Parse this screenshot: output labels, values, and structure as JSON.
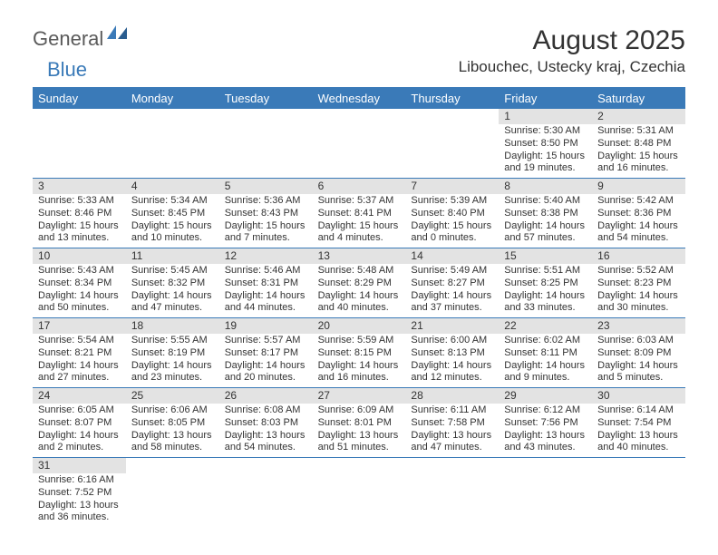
{
  "branding": {
    "logo_part1": "General",
    "logo_part2": "Blue",
    "logo_color1": "#5a5a5a",
    "logo_color2": "#3a7ab8"
  },
  "header": {
    "month_title": "August 2025",
    "location": "Libouchec, Ustecky kraj, Czechia"
  },
  "colors": {
    "header_bg": "#3a7ab8",
    "daynum_bg": "#e3e3e3",
    "text": "#333333",
    "border": "#3a7ab8"
  },
  "weekdays": [
    "Sunday",
    "Monday",
    "Tuesday",
    "Wednesday",
    "Thursday",
    "Friday",
    "Saturday"
  ],
  "weeks": [
    [
      {
        "empty": true
      },
      {
        "empty": true
      },
      {
        "empty": true
      },
      {
        "empty": true
      },
      {
        "empty": true
      },
      {
        "day": "1",
        "sunrise": "Sunrise: 5:30 AM",
        "sunset": "Sunset: 8:50 PM",
        "daylight1": "Daylight: 15 hours",
        "daylight2": "and 19 minutes."
      },
      {
        "day": "2",
        "sunrise": "Sunrise: 5:31 AM",
        "sunset": "Sunset: 8:48 PM",
        "daylight1": "Daylight: 15 hours",
        "daylight2": "and 16 minutes."
      }
    ],
    [
      {
        "day": "3",
        "sunrise": "Sunrise: 5:33 AM",
        "sunset": "Sunset: 8:46 PM",
        "daylight1": "Daylight: 15 hours",
        "daylight2": "and 13 minutes."
      },
      {
        "day": "4",
        "sunrise": "Sunrise: 5:34 AM",
        "sunset": "Sunset: 8:45 PM",
        "daylight1": "Daylight: 15 hours",
        "daylight2": "and 10 minutes."
      },
      {
        "day": "5",
        "sunrise": "Sunrise: 5:36 AM",
        "sunset": "Sunset: 8:43 PM",
        "daylight1": "Daylight: 15 hours",
        "daylight2": "and 7 minutes."
      },
      {
        "day": "6",
        "sunrise": "Sunrise: 5:37 AM",
        "sunset": "Sunset: 8:41 PM",
        "daylight1": "Daylight: 15 hours",
        "daylight2": "and 4 minutes."
      },
      {
        "day": "7",
        "sunrise": "Sunrise: 5:39 AM",
        "sunset": "Sunset: 8:40 PM",
        "daylight1": "Daylight: 15 hours",
        "daylight2": "and 0 minutes."
      },
      {
        "day": "8",
        "sunrise": "Sunrise: 5:40 AM",
        "sunset": "Sunset: 8:38 PM",
        "daylight1": "Daylight: 14 hours",
        "daylight2": "and 57 minutes."
      },
      {
        "day": "9",
        "sunrise": "Sunrise: 5:42 AM",
        "sunset": "Sunset: 8:36 PM",
        "daylight1": "Daylight: 14 hours",
        "daylight2": "and 54 minutes."
      }
    ],
    [
      {
        "day": "10",
        "sunrise": "Sunrise: 5:43 AM",
        "sunset": "Sunset: 8:34 PM",
        "daylight1": "Daylight: 14 hours",
        "daylight2": "and 50 minutes."
      },
      {
        "day": "11",
        "sunrise": "Sunrise: 5:45 AM",
        "sunset": "Sunset: 8:32 PM",
        "daylight1": "Daylight: 14 hours",
        "daylight2": "and 47 minutes."
      },
      {
        "day": "12",
        "sunrise": "Sunrise: 5:46 AM",
        "sunset": "Sunset: 8:31 PM",
        "daylight1": "Daylight: 14 hours",
        "daylight2": "and 44 minutes."
      },
      {
        "day": "13",
        "sunrise": "Sunrise: 5:48 AM",
        "sunset": "Sunset: 8:29 PM",
        "daylight1": "Daylight: 14 hours",
        "daylight2": "and 40 minutes."
      },
      {
        "day": "14",
        "sunrise": "Sunrise: 5:49 AM",
        "sunset": "Sunset: 8:27 PM",
        "daylight1": "Daylight: 14 hours",
        "daylight2": "and 37 minutes."
      },
      {
        "day": "15",
        "sunrise": "Sunrise: 5:51 AM",
        "sunset": "Sunset: 8:25 PM",
        "daylight1": "Daylight: 14 hours",
        "daylight2": "and 33 minutes."
      },
      {
        "day": "16",
        "sunrise": "Sunrise: 5:52 AM",
        "sunset": "Sunset: 8:23 PM",
        "daylight1": "Daylight: 14 hours",
        "daylight2": "and 30 minutes."
      }
    ],
    [
      {
        "day": "17",
        "sunrise": "Sunrise: 5:54 AM",
        "sunset": "Sunset: 8:21 PM",
        "daylight1": "Daylight: 14 hours",
        "daylight2": "and 27 minutes."
      },
      {
        "day": "18",
        "sunrise": "Sunrise: 5:55 AM",
        "sunset": "Sunset: 8:19 PM",
        "daylight1": "Daylight: 14 hours",
        "daylight2": "and 23 minutes."
      },
      {
        "day": "19",
        "sunrise": "Sunrise: 5:57 AM",
        "sunset": "Sunset: 8:17 PM",
        "daylight1": "Daylight: 14 hours",
        "daylight2": "and 20 minutes."
      },
      {
        "day": "20",
        "sunrise": "Sunrise: 5:59 AM",
        "sunset": "Sunset: 8:15 PM",
        "daylight1": "Daylight: 14 hours",
        "daylight2": "and 16 minutes."
      },
      {
        "day": "21",
        "sunrise": "Sunrise: 6:00 AM",
        "sunset": "Sunset: 8:13 PM",
        "daylight1": "Daylight: 14 hours",
        "daylight2": "and 12 minutes."
      },
      {
        "day": "22",
        "sunrise": "Sunrise: 6:02 AM",
        "sunset": "Sunset: 8:11 PM",
        "daylight1": "Daylight: 14 hours",
        "daylight2": "and 9 minutes."
      },
      {
        "day": "23",
        "sunrise": "Sunrise: 6:03 AM",
        "sunset": "Sunset: 8:09 PM",
        "daylight1": "Daylight: 14 hours",
        "daylight2": "and 5 minutes."
      }
    ],
    [
      {
        "day": "24",
        "sunrise": "Sunrise: 6:05 AM",
        "sunset": "Sunset: 8:07 PM",
        "daylight1": "Daylight: 14 hours",
        "daylight2": "and 2 minutes."
      },
      {
        "day": "25",
        "sunrise": "Sunrise: 6:06 AM",
        "sunset": "Sunset: 8:05 PM",
        "daylight1": "Daylight: 13 hours",
        "daylight2": "and 58 minutes."
      },
      {
        "day": "26",
        "sunrise": "Sunrise: 6:08 AM",
        "sunset": "Sunset: 8:03 PM",
        "daylight1": "Daylight: 13 hours",
        "daylight2": "and 54 minutes."
      },
      {
        "day": "27",
        "sunrise": "Sunrise: 6:09 AM",
        "sunset": "Sunset: 8:01 PM",
        "daylight1": "Daylight: 13 hours",
        "daylight2": "and 51 minutes."
      },
      {
        "day": "28",
        "sunrise": "Sunrise: 6:11 AM",
        "sunset": "Sunset: 7:58 PM",
        "daylight1": "Daylight: 13 hours",
        "daylight2": "and 47 minutes."
      },
      {
        "day": "29",
        "sunrise": "Sunrise: 6:12 AM",
        "sunset": "Sunset: 7:56 PM",
        "daylight1": "Daylight: 13 hours",
        "daylight2": "and 43 minutes."
      },
      {
        "day": "30",
        "sunrise": "Sunrise: 6:14 AM",
        "sunset": "Sunset: 7:54 PM",
        "daylight1": "Daylight: 13 hours",
        "daylight2": "and 40 minutes."
      }
    ],
    [
      {
        "day": "31",
        "sunrise": "Sunrise: 6:16 AM",
        "sunset": "Sunset: 7:52 PM",
        "daylight1": "Daylight: 13 hours",
        "daylight2": "and 36 minutes."
      },
      {
        "empty": true
      },
      {
        "empty": true
      },
      {
        "empty": true
      },
      {
        "empty": true
      },
      {
        "empty": true
      },
      {
        "empty": true
      }
    ]
  ]
}
